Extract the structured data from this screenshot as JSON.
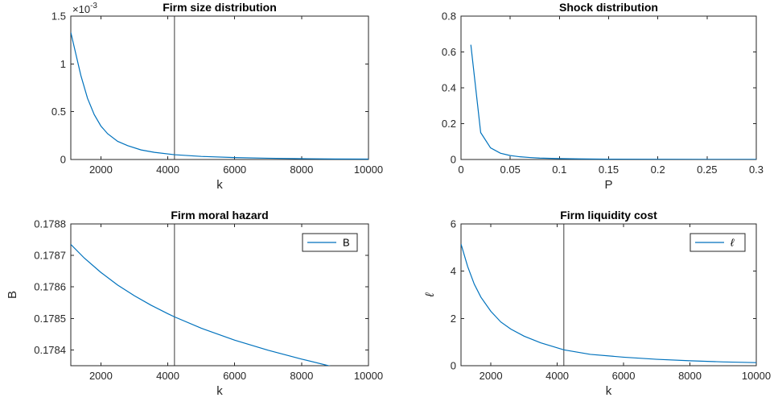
{
  "chart_data": [
    {
      "id": "firm-size",
      "type": "line",
      "title": "Firm size distribution",
      "xlabel": "k",
      "ylabel": "",
      "xlim": [
        1100,
        10000
      ],
      "ylim": [
        0,
        0.0015
      ],
      "xticks": [
        2000,
        4000,
        6000,
        8000,
        10000
      ],
      "xtick_labels": [
        "2000",
        "4000",
        "6000",
        "8000",
        "10000"
      ],
      "yticks": [
        0,
        0.0005,
        0.001,
        0.0015
      ],
      "ytick_labels": [
        "0",
        "0.5",
        "1",
        "1.5"
      ],
      "y_exponent_label": "×10",
      "y_exponent_power": "-3",
      "vline_x": 4200,
      "line_color": "#0072BD",
      "vline_color": "#262626",
      "grid": false,
      "series": [
        {
          "x": [
            1100,
            1200,
            1400,
            1600,
            1800,
            2000,
            2200,
            2500,
            2800,
            3200,
            3600,
            4200,
            5000,
            6000,
            7000,
            8000,
            9000,
            10000
          ],
          "y": [
            0.00133,
            0.00118,
            0.00088,
            0.00064,
            0.00047,
            0.00035,
            0.00027,
            0.00019,
            0.000145,
            0.0001,
            7.5e-05,
            5e-05,
            3.2e-05,
            2e-05,
            1.3e-05,
            8.5e-06,
            5.5e-06,
            4e-06
          ]
        }
      ]
    },
    {
      "id": "shock",
      "type": "line",
      "title": "Shock distribution",
      "xlabel": "P",
      "ylabel": "",
      "xlim": [
        0,
        0.3
      ],
      "ylim": [
        0,
        0.8
      ],
      "xticks": [
        0,
        0.05,
        0.1,
        0.15,
        0.2,
        0.25,
        0.3
      ],
      "xtick_labels": [
        "0",
        "0.05",
        "0.1",
        "0.15",
        "0.2",
        "0.25",
        "0.3"
      ],
      "yticks": [
        0,
        0.2,
        0.4,
        0.6,
        0.8
      ],
      "ytick_labels": [
        "0",
        "0.2",
        "0.4",
        "0.6",
        "0.8"
      ],
      "line_color": "#0072BD",
      "grid": false,
      "series": [
        {
          "x": [
            0.01,
            0.02,
            0.03,
            0.04,
            0.05,
            0.06,
            0.07,
            0.08,
            0.1,
            0.12,
            0.15,
            0.2,
            0.25,
            0.3
          ],
          "y": [
            0.64,
            0.15,
            0.065,
            0.035,
            0.022,
            0.015,
            0.011,
            0.008,
            0.005,
            0.0035,
            0.002,
            0.001,
            0.0006,
            0.0004
          ]
        }
      ]
    },
    {
      "id": "moral-hazard",
      "type": "line",
      "title": "Firm moral hazard",
      "xlabel": "k",
      "ylabel": "B",
      "xlim": [
        1100,
        10000
      ],
      "ylim": [
        0.17835,
        0.1788
      ],
      "xticks": [
        2000,
        4000,
        6000,
        8000,
        10000
      ],
      "xtick_labels": [
        "2000",
        "4000",
        "6000",
        "8000",
        "10000"
      ],
      "yticks": [
        0.1784,
        0.1785,
        0.1786,
        0.1787,
        0.1788
      ],
      "ytick_labels": [
        "0.1784",
        "0.1785",
        "0.1786",
        "0.1787",
        "0.1788"
      ],
      "vline_x": 4200,
      "line_color": "#0072BD",
      "grid": false,
      "legend": "B",
      "legend_position": "top-right",
      "series": [
        {
          "name": "B",
          "x": [
            1100,
            1500,
            2000,
            2500,
            3000,
            3500,
            4000,
            4200,
            5000,
            6000,
            7000,
            8000,
            9000,
            10000
          ],
          "y": [
            0.178735,
            0.178692,
            0.178646,
            0.178606,
            0.178572,
            0.178542,
            0.178515,
            0.178505,
            0.178469,
            0.178431,
            0.178399,
            0.178371,
            0.178345,
            0.178322
          ]
        }
      ]
    },
    {
      "id": "liquidity",
      "type": "line",
      "title": "Firm liquidity cost",
      "xlabel": "k",
      "ylabel": "ℓ",
      "xlim": [
        1100,
        10000
      ],
      "ylim": [
        0,
        6
      ],
      "xticks": [
        2000,
        4000,
        6000,
        8000,
        10000
      ],
      "xtick_labels": [
        "2000",
        "4000",
        "6000",
        "8000",
        "10000"
      ],
      "yticks": [
        0,
        2,
        4,
        6
      ],
      "ytick_labels": [
        "0",
        "2",
        "4",
        "6"
      ],
      "vline_x": 4200,
      "line_color": "#0072BD",
      "grid": false,
      "legend": "ℓ",
      "legend_position": "top-right",
      "series": [
        {
          "name": "ℓ",
          "x": [
            1100,
            1300,
            1500,
            1700,
            2000,
            2300,
            2600,
            3000,
            3500,
            4200,
            5000,
            6000,
            7000,
            8000,
            9000,
            10000
          ],
          "y": [
            5.15,
            4.2,
            3.45,
            2.9,
            2.3,
            1.85,
            1.55,
            1.25,
            0.97,
            0.67,
            0.48,
            0.36,
            0.27,
            0.21,
            0.16,
            0.13
          ]
        }
      ]
    }
  ]
}
